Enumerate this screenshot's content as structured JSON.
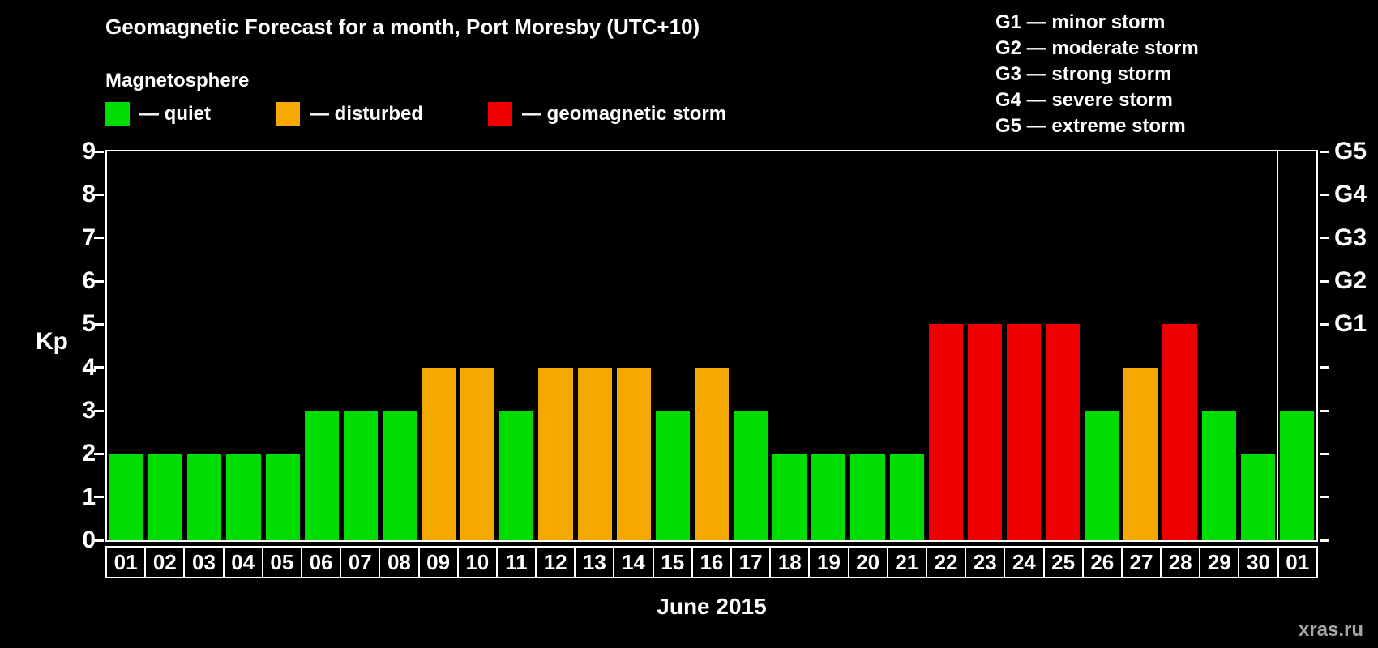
{
  "title": "Geomagnetic Forecast for a month, Port Moresby (UTC+10)",
  "watermark": "xras.ru",
  "legend": {
    "title": "Magnetosphere",
    "items": [
      {
        "status": "quiet",
        "label": "— quiet",
        "color": "#00dd00"
      },
      {
        "status": "disturbed",
        "label": "— disturbed",
        "color": "#f5a800"
      },
      {
        "status": "storm",
        "label": "— geomagnetic storm",
        "color": "#ee0000"
      }
    ]
  },
  "g_legend": [
    "G1 — minor storm",
    "G2 — moderate storm",
    "G3 — strong storm",
    "G4 — severe storm",
    "G5 — extreme storm"
  ],
  "chart_data": {
    "type": "bar",
    "title": "Geomagnetic Forecast for a month, Port Moresby (UTC+10)",
    "xlabel": "June 2015",
    "ylabel": "Kp",
    "ylim": [
      0,
      9
    ],
    "y_ticks": [
      0,
      1,
      2,
      3,
      4,
      5,
      6,
      7,
      8,
      9
    ],
    "right_axis_labels": [
      {
        "label": "G1",
        "kp": 5
      },
      {
        "label": "G2",
        "kp": 6
      },
      {
        "label": "G3",
        "kp": 7
      },
      {
        "label": "G4",
        "kp": 8
      },
      {
        "label": "G5",
        "kp": 9
      }
    ],
    "categories": [
      "01",
      "02",
      "03",
      "04",
      "05",
      "06",
      "07",
      "08",
      "09",
      "10",
      "11",
      "12",
      "13",
      "14",
      "15",
      "16",
      "17",
      "18",
      "19",
      "20",
      "21",
      "22",
      "23",
      "24",
      "25",
      "26",
      "27",
      "28",
      "29",
      "30",
      "01"
    ],
    "values": [
      2,
      2,
      2,
      2,
      2,
      3,
      3,
      3,
      4,
      4,
      3,
      4,
      4,
      4,
      3,
      4,
      3,
      2,
      2,
      2,
      2,
      5,
      5,
      5,
      5,
      3,
      4,
      5,
      3,
      2,
      3
    ],
    "statuses": [
      "quiet",
      "quiet",
      "quiet",
      "quiet",
      "quiet",
      "quiet",
      "quiet",
      "quiet",
      "disturbed",
      "disturbed",
      "quiet",
      "disturbed",
      "disturbed",
      "disturbed",
      "quiet",
      "disturbed",
      "quiet",
      "quiet",
      "quiet",
      "quiet",
      "quiet",
      "storm",
      "storm",
      "storm",
      "storm",
      "quiet",
      "disturbed",
      "storm",
      "quiet",
      "quiet",
      "quiet"
    ],
    "colors": {
      "quiet": "#00dd00",
      "disturbed": "#f5a800",
      "storm": "#ee0000"
    },
    "month_separator_after_index": 29,
    "grid": false,
    "legend_position": "top"
  }
}
